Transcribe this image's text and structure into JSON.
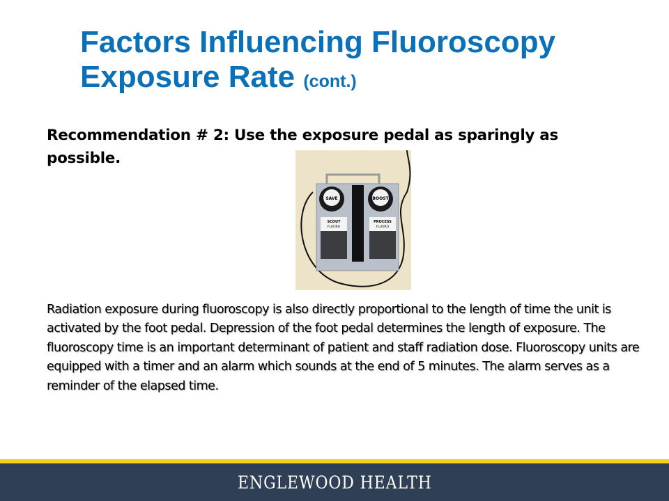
{
  "slide": {
    "title_main": "Factors Influencing Fluoroscopy Exposure Rate",
    "title_suffix": "(cont.)",
    "recommendation": "Recommendation # 2:  Use the exposure pedal as sparingly as possible.",
    "photo_labels": {
      "save": "SAVE",
      "boost": "BOOST",
      "scout_line1": "SCOUT",
      "scout_line2": "FLUORO",
      "process_line1": "PROCESS",
      "process_line2": "FLUORO"
    },
    "body": "Radiation exposure during fluoroscopy is also directly proportional to the length of time the unit is activated by the foot pedal. Depression of the foot pedal determines the length of exposure. The fluoroscopy time is an important determinant of patient and staff radiation dose. Fluoroscopy units are equipped with a timer and an alarm which sounds at the end of 5 minutes. The alarm serves as a reminder of the elapsed time."
  },
  "footer": {
    "brand": "ENGLEWOOD HEALTH"
  },
  "colors": {
    "title": "#0a70b8",
    "footer_bg": "#2e3f56",
    "accent_band": "#f6cf14"
  }
}
